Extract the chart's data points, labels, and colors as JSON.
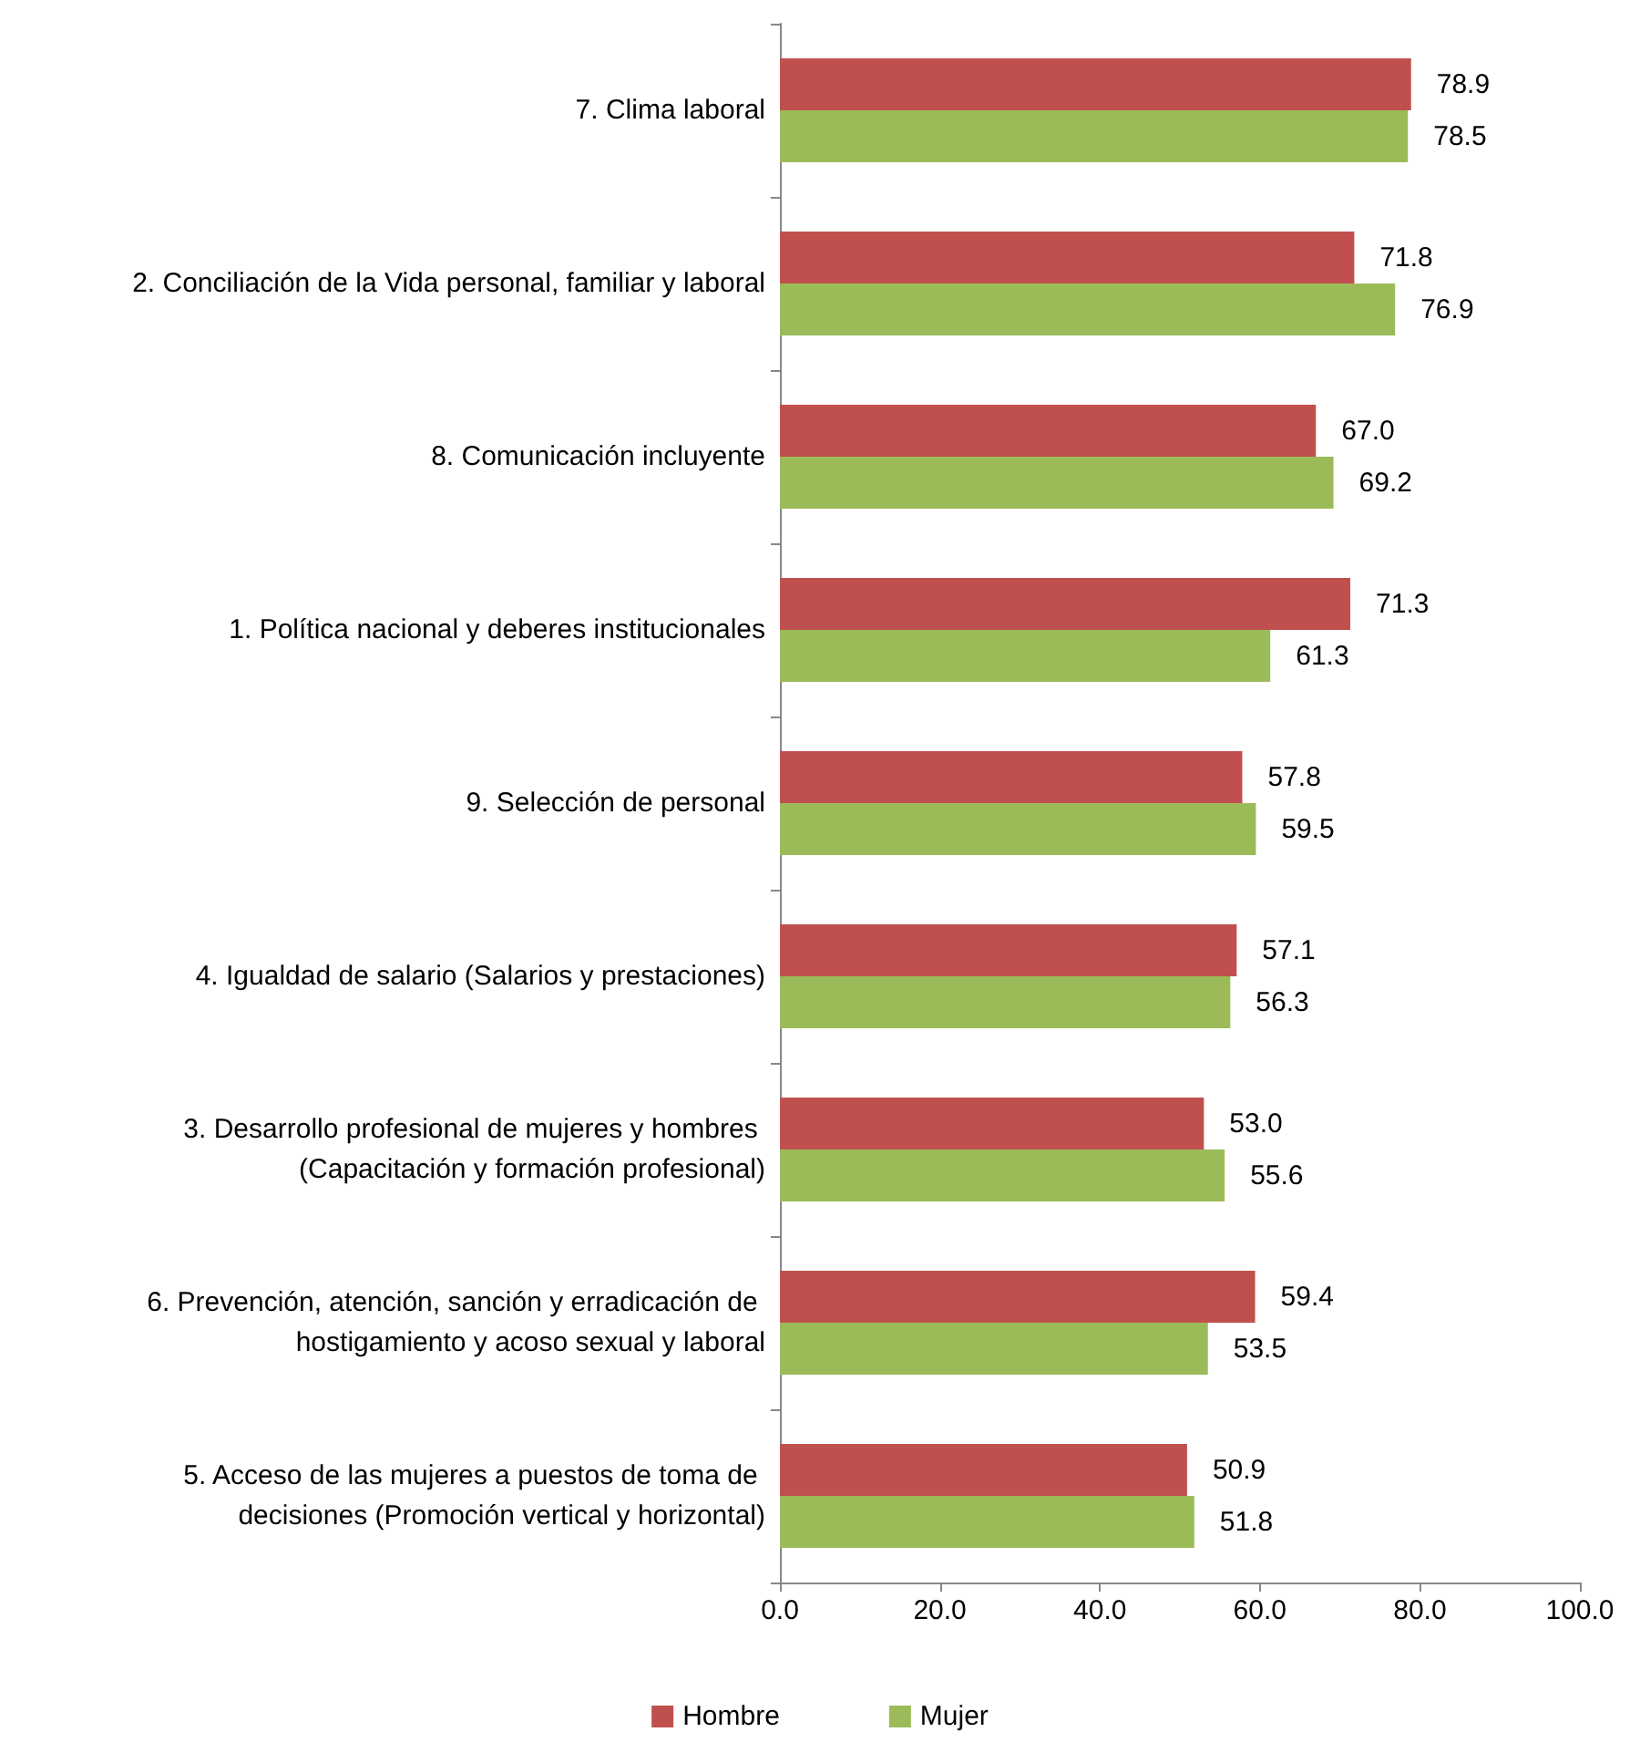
{
  "chart_data": {
    "type": "bar",
    "orientation": "horizontal",
    "categories": [
      "7. Clima laboral",
      "2. Conciliación de la Vida personal, familiar y laboral",
      "8. Comunicación incluyente",
      "1. Política nacional y deberes institucionales",
      "9. Selección de personal",
      "4. Igualdad de salario (Salarios y prestaciones)",
      "3. Desarrollo profesional de mujeres y hombres (Capacitación y formación profesional)",
      "6. Prevención, atención, sanción y erradicación de hostigamiento y acoso sexual y laboral",
      "5. Acceso de las mujeres a puestos de toma de decisiones (Promoción vertical y horizontal)"
    ],
    "series": [
      {
        "name": "Hombre",
        "color": "#c0504d",
        "values": [
          78.9,
          71.8,
          67.0,
          71.3,
          57.8,
          57.1,
          53.0,
          59.4,
          50.9
        ],
        "value_labels": [
          "78.9",
          "71.8",
          "67.0",
          "71.3",
          "57.8",
          "57.1",
          "53.0",
          "59.4",
          "50.9"
        ]
      },
      {
        "name": "Mujer",
        "color": "#9bbb59",
        "values": [
          78.5,
          76.9,
          69.2,
          61.3,
          59.5,
          56.3,
          55.6,
          53.5,
          51.8
        ],
        "value_labels": [
          "78.5",
          "76.9",
          "69.2",
          "61.3",
          "59.5",
          "56.3",
          "55.6",
          "53.5",
          "51.8"
        ]
      }
    ],
    "xlim": [
      0,
      100
    ],
    "xticks": [
      {
        "value": 0,
        "label": "0.0"
      },
      {
        "value": 20,
        "label": "20.0"
      },
      {
        "value": 40,
        "label": "40.0"
      },
      {
        "value": 60,
        "label": "60.0"
      },
      {
        "value": 80,
        "label": "80.0"
      },
      {
        "value": 100,
        "label": "100.0"
      }
    ],
    "grid": false,
    "legend": "bottom"
  }
}
